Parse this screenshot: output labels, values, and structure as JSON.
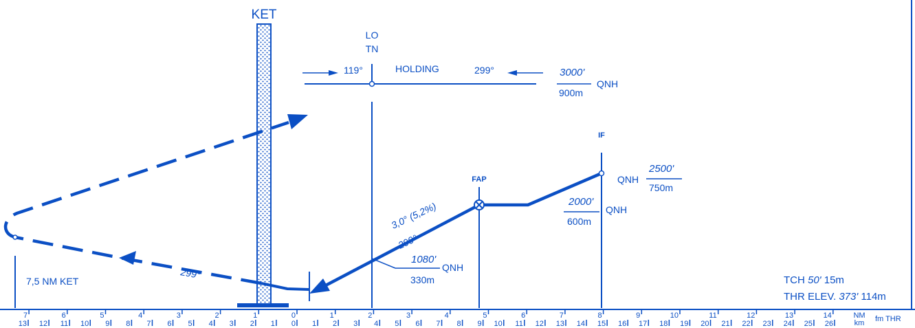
{
  "color": "#0b4fc4",
  "labels": {
    "ket": "KET",
    "lotn_line1": "LO",
    "lotn_line2": "TN",
    "holding": "HOLDING",
    "holding_inbound": "119°",
    "holding_outbound": "299°",
    "holding_alt_ft": "3000'",
    "holding_alt_m": "900m",
    "holding_qnh": "QNH",
    "if": "IF",
    "if_alt_ft": "2500'",
    "if_alt_m": "750m",
    "if_qnh": "QNH",
    "fap": "FAP",
    "fap_alt_ft": "2000'",
    "fap_alt_m": "600m",
    "fap_qnh": "QNH",
    "glide_angle": "3,0° (5,2%)",
    "final_track": "299°",
    "lotn_alt_ft": "1080'",
    "lotn_alt_m": "330m",
    "lotn_qnh": "QNH",
    "outbound_track": "299°",
    "ket_distance": "7,5 NM KET",
    "tch_label": "TCH",
    "tch_ft": "50'",
    "tch_m": "15m",
    "thr_label": "THR ELEV.",
    "thr_ft": "373'",
    "thr_m": "114m",
    "unit_nm": "NM",
    "unit_km": "km",
    "fm_thr": "fm THR"
  },
  "nm_scale": [
    "7",
    "6",
    "5",
    "4",
    "3",
    "2",
    "1",
    "0",
    "1",
    "2",
    "3",
    "4",
    "5",
    "6",
    "7",
    "8",
    "9",
    "10",
    "11",
    "12",
    "13",
    "14"
  ],
  "km_scale": [
    "13",
    "12",
    "11",
    "10",
    "9",
    "8",
    "7",
    "6",
    "5",
    "4",
    "3",
    "2",
    "1",
    "0",
    "1",
    "2",
    "3",
    "4",
    "5",
    "6",
    "7",
    "8",
    "9",
    "10",
    "11",
    "12",
    "13",
    "14",
    "15",
    "16",
    "17",
    "18",
    "19",
    "20",
    "21",
    "22",
    "23",
    "24",
    "25",
    "26"
  ]
}
